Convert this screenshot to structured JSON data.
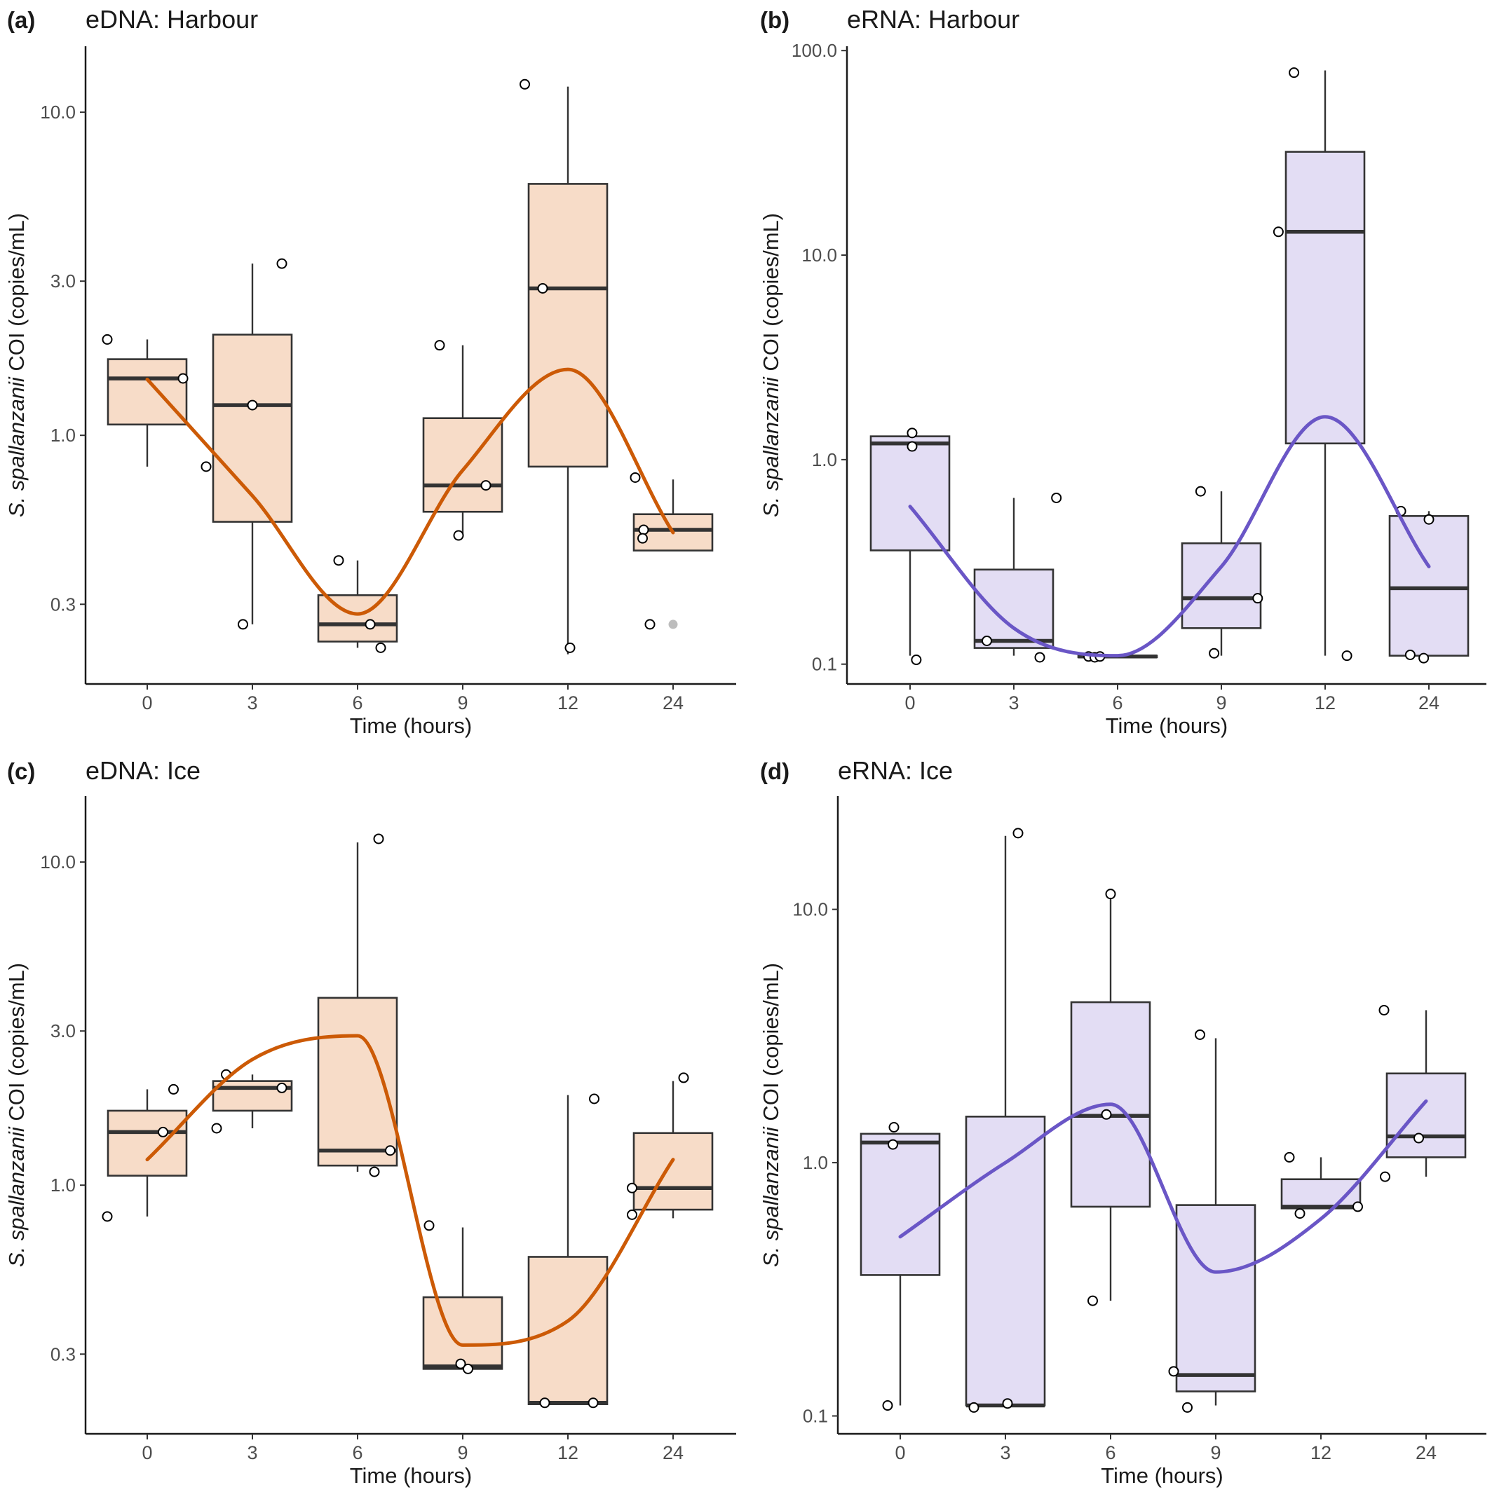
{
  "figure": {
    "source_caption": ""
  },
  "colors": {
    "eDNA_fill": "#f7dcc8",
    "eDNA_line": "#cc5a06",
    "eRNA_fill": "#e3ddf4",
    "eRNA_line": "#6a56c6"
  },
  "chart_data": [
    {
      "id": "a",
      "letter": "(a)",
      "title": "eDNA: Harbour",
      "type": "box",
      "scale": "log10",
      "xlabel": "Time (hours)",
      "ylabel_italic": "S. spallanzanii",
      "ylabel_rest": " COI (copies/mL)",
      "ylim": [
        0.17,
        16.0
      ],
      "yticks": [
        0.3,
        1.0,
        3.0,
        10.0
      ],
      "ytick_labels": [
        "0.3",
        "1.0",
        "3.0",
        "10.0"
      ],
      "categories": [
        "0",
        "3",
        "6",
        "9",
        "12",
        "24"
      ],
      "colorKey": "eDNA",
      "boxes": [
        {
          "q1": 1.08,
          "median": 1.5,
          "q3": 1.72,
          "lo": 0.8,
          "hi": 1.98
        },
        {
          "q1": 0.54,
          "median": 1.24,
          "q3": 2.05,
          "lo": 0.26,
          "hi": 3.4
        },
        {
          "q1": 0.23,
          "median": 0.26,
          "q3": 0.32,
          "lo": 0.22,
          "hi": 0.41
        },
        {
          "q1": 0.58,
          "median": 0.7,
          "q3": 1.13,
          "lo": 0.49,
          "hi": 1.9
        },
        {
          "q1": 0.8,
          "median": 2.85,
          "q3": 6.0,
          "lo": 0.21,
          "hi": 12.0
        },
        {
          "q1": 0.44,
          "median": 0.51,
          "q3": 0.57,
          "lo": 0.44,
          "hi": 0.73
        }
      ],
      "points": [
        [
          -0.38,
          1.98
        ],
        [
          0.34,
          1.5
        ],
        [
          0.56,
          0.8
        ],
        [
          -0.09,
          0.26
        ],
        [
          0.0,
          1.24
        ],
        [
          0.28,
          3.4
        ],
        [
          -0.18,
          0.41
        ],
        [
          0.12,
          0.26
        ],
        [
          0.22,
          0.22
        ],
        [
          -0.22,
          1.9
        ],
        [
          -0.04,
          0.49
        ],
        [
          0.22,
          0.7
        ],
        [
          -0.41,
          12.2
        ],
        [
          -0.24,
          2.85
        ],
        [
          0.02,
          0.22
        ],
        [
          -0.36,
          0.74
        ],
        [
          -0.28,
          0.51
        ],
        [
          -0.29,
          0.48
        ],
        [
          -0.22,
          0.26
        ]
      ],
      "outliers": [
        [
          0.0,
          0.26
        ]
      ],
      "smooth": [
        1.49,
        0.65,
        0.28,
        0.78,
        1.6,
        0.5
      ]
    },
    {
      "id": "b",
      "letter": "(b)",
      "title": "eRNA: Harbour",
      "type": "box",
      "scale": "log10",
      "xlabel": "Time (hours)",
      "ylabel_italic": "S. spallanzanii",
      "ylabel_rest": " COI (copies/mL)",
      "ylim": [
        0.08,
        105.0
      ],
      "yticks": [
        0.1,
        1.0,
        10.0,
        100.0
      ],
      "ytick_labels": [
        "0.1",
        "1.0",
        "10.0",
        "100.0"
      ],
      "categories": [
        "0",
        "3",
        "6",
        "9",
        "12",
        "24"
      ],
      "colorKey": "eRNA",
      "boxes": [
        {
          "q1": 0.36,
          "median": 1.2,
          "q3": 1.3,
          "lo": 0.11,
          "hi": 1.3
        },
        {
          "q1": 0.12,
          "median": 0.13,
          "q3": 0.29,
          "lo": 0.11,
          "hi": 0.65
        },
        {
          "q1": 0.108,
          "median": 0.109,
          "q3": 0.11,
          "lo": 0.108,
          "hi": 0.11
        },
        {
          "q1": 0.15,
          "median": 0.21,
          "q3": 0.39,
          "lo": 0.11,
          "hi": 0.7
        },
        {
          "q1": 1.2,
          "median": 13.0,
          "q3": 32.0,
          "lo": 0.11,
          "hi": 80.0
        },
        {
          "q1": 0.11,
          "median": 0.235,
          "q3": 0.53,
          "lo": 0.11,
          "hi": 0.56
        }
      ],
      "points": [
        [
          0.02,
          1.35
        ],
        [
          0.02,
          1.16
        ],
        [
          0.06,
          0.105
        ],
        [
          -0.26,
          0.13
        ],
        [
          0.25,
          0.108
        ],
        [
          0.41,
          0.65
        ],
        [
          -0.28,
          0.109
        ],
        [
          -0.22,
          0.108
        ],
        [
          -0.17,
          0.109
        ],
        [
          -0.2,
          0.7
        ],
        [
          -0.07,
          0.113
        ],
        [
          0.35,
          0.21
        ],
        [
          -0.45,
          13.0
        ],
        [
          -0.3,
          78.0
        ],
        [
          0.21,
          0.11
        ],
        [
          -0.27,
          0.56
        ],
        [
          -0.18,
          0.111
        ],
        [
          -0.05,
          0.107
        ],
        [
          0.0,
          0.51
        ]
      ],
      "outliers": [],
      "smooth": [
        0.59,
        0.15,
        0.11,
        0.3,
        1.62,
        0.3
      ]
    },
    {
      "id": "c",
      "letter": "(c)",
      "title": "eDNA: Ice",
      "type": "box",
      "scale": "log10",
      "xlabel": "Time (hours)",
      "ylabel_italic": "S. spallanzanii",
      "ylabel_rest": " COI (copies/mL)",
      "ylim": [
        0.17,
        16.0
      ],
      "yticks": [
        0.3,
        1.0,
        3.0,
        10.0
      ],
      "ytick_labels": [
        "0.3",
        "1.0",
        "3.0",
        "10.0"
      ],
      "categories": [
        "0",
        "3",
        "6",
        "9",
        "12",
        "24"
      ],
      "colorKey": "eDNA",
      "boxes": [
        {
          "q1": 1.07,
          "median": 1.46,
          "q3": 1.7,
          "lo": 0.8,
          "hi": 1.98
        },
        {
          "q1": 1.7,
          "median": 2.0,
          "q3": 2.1,
          "lo": 1.5,
          "hi": 2.2
        },
        {
          "q1": 1.15,
          "median": 1.28,
          "q3": 3.8,
          "lo": 1.1,
          "hi": 11.5
        },
        {
          "q1": 0.27,
          "median": 0.275,
          "q3": 0.45,
          "lo": 0.27,
          "hi": 0.74
        },
        {
          "q1": 0.21,
          "median": 0.212,
          "q3": 0.6,
          "lo": 0.21,
          "hi": 1.9
        },
        {
          "q1": 0.84,
          "median": 0.98,
          "q3": 1.45,
          "lo": 0.79,
          "hi": 2.1
        }
      ],
      "points": [
        [
          -0.38,
          0.8
        ],
        [
          0.15,
          1.46
        ],
        [
          0.25,
          1.98
        ],
        [
          -0.34,
          1.5
        ],
        [
          -0.25,
          2.2
        ],
        [
          0.28,
          2.0
        ],
        [
          0.16,
          1.1
        ],
        [
          0.2,
          11.8
        ],
        [
          0.31,
          1.28
        ],
        [
          -0.32,
          0.75
        ],
        [
          -0.02,
          0.28
        ],
        [
          0.05,
          0.27
        ],
        [
          -0.22,
          0.212
        ],
        [
          0.24,
          0.212
        ],
        [
          0.25,
          1.85
        ],
        [
          -0.39,
          0.81
        ],
        [
          -0.39,
          0.98
        ],
        [
          0.1,
          2.15
        ]
      ],
      "outliers": [],
      "smooth": [
        1.2,
        2.45,
        2.9,
        0.32,
        0.38,
        1.2
      ]
    },
    {
      "id": "d",
      "letter": "(d)",
      "title": "eRNA: Ice",
      "type": "box",
      "scale": "log10",
      "xlabel": "Time (hours)",
      "ylabel_italic": "S. spallanzanii",
      "ylabel_rest": " COI (copies/mL)",
      "ylim": [
        0.085,
        28.0
      ],
      "yticks": [
        0.1,
        1.0,
        10.0
      ],
      "ytick_labels": [
        "0.1",
        "1.0",
        "10.0"
      ],
      "categories": [
        "0",
        "3",
        "6",
        "9",
        "12",
        "24"
      ],
      "colorKey": "eRNA",
      "boxes": [
        {
          "q1": 0.36,
          "median": 1.2,
          "q3": 1.3,
          "lo": 0.11,
          "hi": 1.3
        },
        {
          "q1": 0.11,
          "median": 0.11,
          "q3": 1.52,
          "lo": 0.11,
          "hi": 19.5
        },
        {
          "q1": 0.67,
          "median": 1.53,
          "q3": 4.3,
          "lo": 0.285,
          "hi": 11.5
        },
        {
          "q1": 0.125,
          "median": 0.145,
          "q3": 0.68,
          "lo": 0.11,
          "hi": 3.1
        },
        {
          "q1": 0.66,
          "median": 0.67,
          "q3": 0.86,
          "lo": 0.66,
          "hi": 1.05
        },
        {
          "q1": 1.05,
          "median": 1.27,
          "q3": 2.25,
          "lo": 0.88,
          "hi": 4.0
        }
      ],
      "points": [
        [
          -0.12,
          0.11
        ],
        [
          -0.07,
          1.18
        ],
        [
          -0.06,
          1.38
        ],
        [
          -0.3,
          0.108
        ],
        [
          0.02,
          0.112
        ],
        [
          0.12,
          20.0
        ],
        [
          -0.17,
          0.285
        ],
        [
          -0.04,
          1.55
        ],
        [
          0.0,
          11.5
        ],
        [
          -0.4,
          0.15
        ],
        [
          -0.27,
          0.108
        ],
        [
          -0.15,
          3.2
        ],
        [
          -0.3,
          1.05
        ],
        [
          -0.2,
          0.63
        ],
        [
          0.35,
          0.67
        ],
        [
          -0.4,
          4.0
        ],
        [
          -0.39,
          0.88
        ],
        [
          -0.07,
          1.25
        ]
      ],
      "outliers": [],
      "smooth": [
        0.51,
        1.0,
        1.7,
        0.37,
        0.6,
        1.75
      ]
    }
  ]
}
